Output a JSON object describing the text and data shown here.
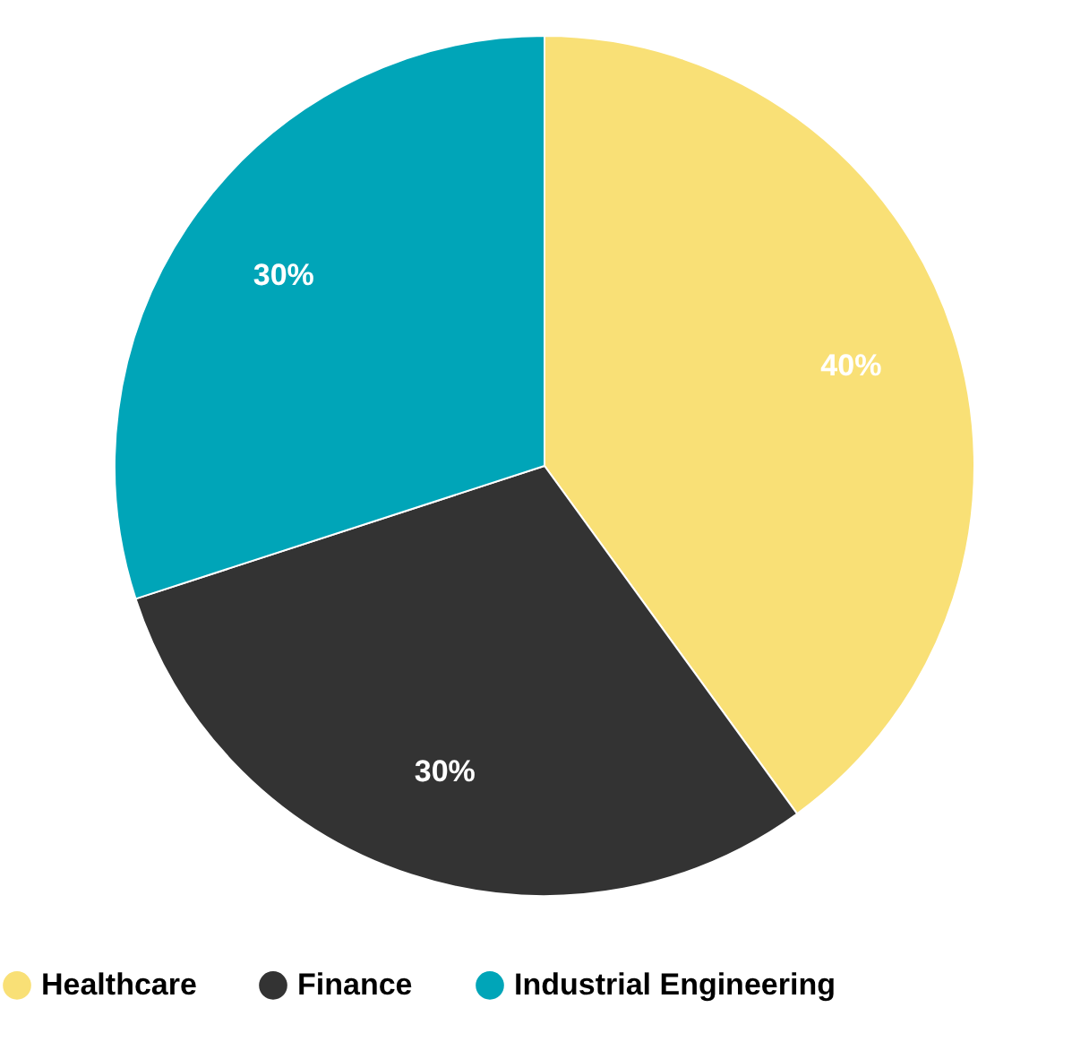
{
  "chart_data": {
    "type": "pie",
    "categories": [
      "Healthcare",
      "Finance",
      "Industrial Engineering"
    ],
    "values": [
      40,
      30,
      30
    ],
    "colors": [
      "#f9e076",
      "#333333",
      "#00a5b8"
    ],
    "value_labels": [
      "40%",
      "30%",
      "30%"
    ],
    "legend": "bottom"
  }
}
